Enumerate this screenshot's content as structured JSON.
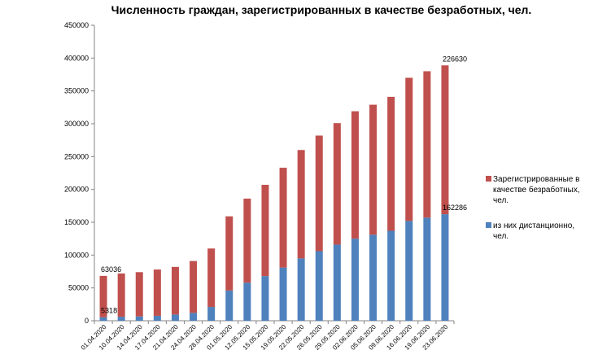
{
  "chart_data": {
    "type": "bar",
    "stacked": true,
    "title": "Численность граждан, зарегистрированных в качестве безработных, чел.",
    "xlabel": "",
    "ylabel": "",
    "ylim": [
      0,
      450000
    ],
    "y_ticks": [
      "0",
      "50000",
      "100000",
      "150000",
      "200000",
      "250000",
      "300000",
      "350000",
      "400000",
      "450000"
    ],
    "grid": false,
    "legend_position": "right",
    "categories": [
      "01.04.2020",
      "10.04.2020",
      "14.04.2020",
      "17.04.2020",
      "21.04.2020",
      "24.04.2020",
      "28.04.2020",
      "01.05.2020",
      "12.05.2020",
      "15.05.2020",
      "19.05.2020",
      "22.05.2020",
      "26.05.2020",
      "29.05.2020",
      "02.06.2020",
      "05.06.2020",
      "09.06.2020",
      "16.06.2020",
      "19.06.2020",
      "23.06.2020"
    ],
    "series": [
      {
        "name": "из них дистанционно, чел.",
        "color": "#4f81bd",
        "values": [
          5318,
          6000,
          6500,
          7500,
          9500,
          12000,
          21000,
          46000,
          58000,
          68000,
          81000,
          95000,
          106000,
          116000,
          125000,
          131000,
          137000,
          152000,
          157000,
          162286
        ]
      },
      {
        "name": "Зарегистрированные в качестве безработных, чел.",
        "color": "#c0504d",
        "values": [
          63036,
          66000,
          67500,
          70500,
          72500,
          79000,
          89000,
          113000,
          128000,
          139000,
          152000,
          165000,
          176000,
          185000,
          194000,
          198000,
          204000,
          218000,
          223000,
          226630
        ]
      }
    ],
    "data_labels": [
      {
        "text": "63036",
        "category": "01.04.2020",
        "series": 1
      },
      {
        "text": "5318",
        "category": "01.04.2020",
        "series": 0
      },
      {
        "text": "226630",
        "category": "23.06.2020",
        "series": 1
      },
      {
        "text": "162286",
        "category": "23.06.2020",
        "series": 0
      }
    ]
  }
}
